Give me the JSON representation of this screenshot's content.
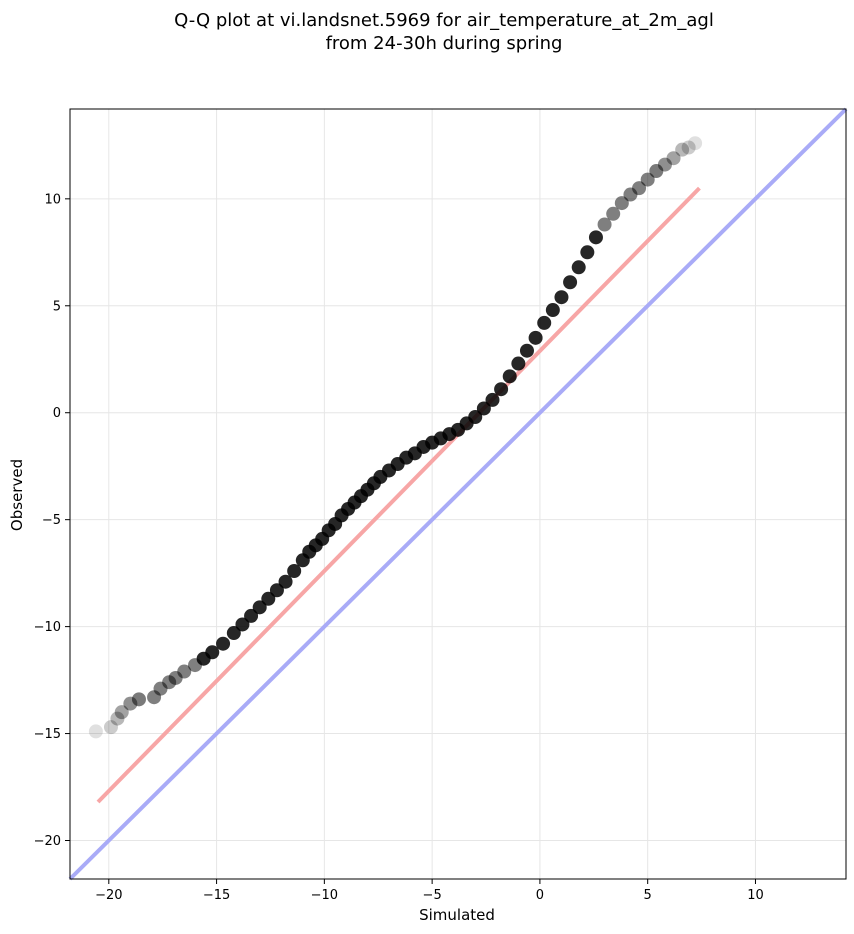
{
  "chart_data": {
    "type": "scatter",
    "title": "Q-Q plot at vi.landsnet.5969 for air_temperature_at_2m_agl",
    "subtitle": "from 24-30h during spring",
    "xlabel": "Simulated",
    "ylabel": "Observed",
    "xlim": [
      -21.8,
      14.2
    ],
    "ylim": [
      -21.8,
      14.2
    ],
    "xticks": [
      -20,
      -15,
      -10,
      -5,
      0,
      5,
      10
    ],
    "yticks": [
      -20,
      -15,
      -10,
      -5,
      0,
      5,
      10
    ],
    "xtick_labels": [
      "−20",
      "−15",
      "−10",
      "−5",
      "0",
      "5",
      "10"
    ],
    "ytick_labels": [
      "−20",
      "−15",
      "−10",
      "−5",
      "0",
      "5",
      "10"
    ],
    "grid": true,
    "series": [
      {
        "kind": "quantile-points",
        "color": "#000000",
        "x": [
          -20.6,
          -19.9,
          -19.6,
          -19.4,
          -19.0,
          -18.6,
          -17.9,
          -17.6,
          -17.2,
          -16.9,
          -16.5,
          -16.0,
          -15.6,
          -15.2,
          -14.7,
          -14.2,
          -13.8,
          -13.4,
          -13.0,
          -12.6,
          -12.2,
          -11.8,
          -11.4,
          -11.0,
          -10.7,
          -10.4,
          -10.1,
          -9.8,
          -9.5,
          -9.2,
          -8.9,
          -8.6,
          -8.3,
          -8.0,
          -7.7,
          -7.4,
          -7.0,
          -6.6,
          -6.2,
          -5.8,
          -5.4,
          -5.0,
          -4.6,
          -4.2,
          -3.8,
          -3.4,
          -3.0,
          -2.6,
          -2.2,
          -1.8,
          -1.4,
          -1.0,
          -0.6,
          -0.2,
          0.2,
          0.6,
          1.0,
          1.4,
          1.8,
          2.2,
          2.6,
          3.0,
          3.4,
          3.8,
          4.2,
          4.6,
          5.0,
          5.4,
          5.8,
          6.2,
          6.6,
          6.9,
          7.2
        ],
        "y": [
          -14.9,
          -14.7,
          -14.3,
          -14.0,
          -13.6,
          -13.4,
          -13.3,
          -12.9,
          -12.6,
          -12.4,
          -12.1,
          -11.8,
          -11.5,
          -11.2,
          -10.8,
          -10.3,
          -9.9,
          -9.5,
          -9.1,
          -8.7,
          -8.3,
          -7.9,
          -7.4,
          -6.9,
          -6.5,
          -6.2,
          -5.9,
          -5.5,
          -5.2,
          -4.8,
          -4.5,
          -4.2,
          -3.9,
          -3.6,
          -3.3,
          -3.0,
          -2.7,
          -2.4,
          -2.1,
          -1.9,
          -1.6,
          -1.4,
          -1.2,
          -1.0,
          -0.8,
          -0.5,
          -0.2,
          0.2,
          0.6,
          1.1,
          1.7,
          2.3,
          2.9,
          3.5,
          4.2,
          4.8,
          5.4,
          6.1,
          6.8,
          7.5,
          8.2,
          8.8,
          9.3,
          9.8,
          10.2,
          10.5,
          10.9,
          11.3,
          11.6,
          11.9,
          12.3,
          12.4,
          12.6
        ]
      },
      {
        "kind": "fit-line",
        "color": "#f7a6a6",
        "x": [
          -20.5,
          7.4
        ],
        "y": [
          -18.2,
          10.5
        ]
      },
      {
        "kind": "identity-line",
        "color": "#a9abf7",
        "x": [
          -21.8,
          14.2
        ],
        "y": [
          -21.8,
          14.2
        ]
      }
    ]
  }
}
